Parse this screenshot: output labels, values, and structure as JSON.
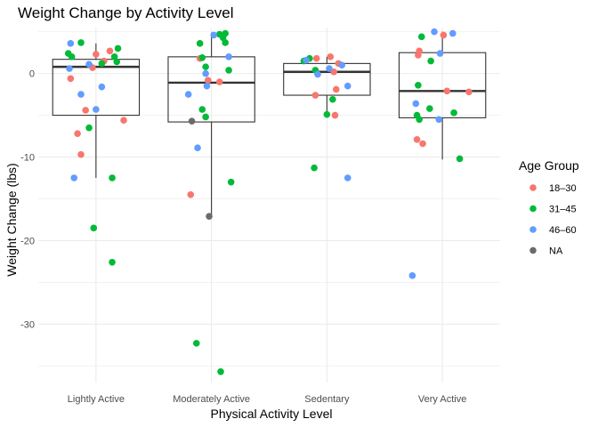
{
  "chart_data": {
    "type": "boxplot-jitter",
    "title": "Weight Change by Activity Level",
    "xlabel": "Physical Activity Level",
    "ylabel": "Weight Change (lbs)",
    "categories": [
      "Lightly Active",
      "Moderately Active",
      "Sedentary",
      "Very Active"
    ],
    "ylim": [
      -37,
      5.5
    ],
    "yticks": [
      0,
      -10,
      -20,
      -30
    ],
    "grid": true,
    "legend": {
      "title": "Age Group",
      "position": "right",
      "items": [
        {
          "label": "18–30",
          "color": "#F8766D"
        },
        {
          "label": "31–45",
          "color": "#00BA38"
        },
        {
          "label": "46–60",
          "color": "#619CFF"
        },
        {
          "label": "NA",
          "color": "#6b6b6b"
        }
      ]
    },
    "boxes": [
      {
        "category": "Lightly Active",
        "q1": -5.0,
        "median": 0.8,
        "q3": 1.7,
        "whisker_low": -12.5,
        "whisker_high": 3.6
      },
      {
        "category": "Moderately Active",
        "q1": -5.8,
        "median": -1.1,
        "q3": 2.0,
        "whisker_low": -17.0,
        "whisker_high": 4.9
      },
      {
        "category": "Sedentary",
        "q1": -2.6,
        "median": 0.2,
        "q3": 1.2,
        "whisker_low": -5.0,
        "whisker_high": 2.0
      },
      {
        "category": "Very Active",
        "q1": -5.3,
        "median": -2.1,
        "q3": 2.5,
        "whisker_low": -10.3,
        "whisker_high": 5.0
      }
    ],
    "points": [
      {
        "category": "Lightly Active",
        "group": "18–30",
        "jitter": -0.22,
        "y": -0.6
      },
      {
        "category": "Lightly Active",
        "group": "18–30",
        "jitter": -0.16,
        "y": -7.2
      },
      {
        "category": "Lightly Active",
        "group": "18–30",
        "jitter": -0.13,
        "y": -9.7
      },
      {
        "category": "Lightly Active",
        "group": "18–30",
        "jitter": -0.09,
        "y": -4.4
      },
      {
        "category": "Lightly Active",
        "group": "18–30",
        "jitter": -0.03,
        "y": 0.7
      },
      {
        "category": "Lightly Active",
        "group": "18–30",
        "jitter": 0.0,
        "y": 2.3
      },
      {
        "category": "Lightly Active",
        "group": "18–30",
        "jitter": 0.07,
        "y": 1.5
      },
      {
        "category": "Lightly Active",
        "group": "18–30",
        "jitter": 0.12,
        "y": 2.7
      },
      {
        "category": "Lightly Active",
        "group": "18–30",
        "jitter": 0.24,
        "y": -5.6
      },
      {
        "category": "Lightly Active",
        "group": "31–45",
        "jitter": -0.24,
        "y": 2.4
      },
      {
        "category": "Lightly Active",
        "group": "31–45",
        "jitter": -0.21,
        "y": 2.0
      },
      {
        "category": "Lightly Active",
        "group": "31–45",
        "jitter": -0.13,
        "y": 3.7
      },
      {
        "category": "Lightly Active",
        "group": "31–45",
        "jitter": -0.06,
        "y": -6.5
      },
      {
        "category": "Lightly Active",
        "group": "31–45",
        "jitter": -0.02,
        "y": -18.5
      },
      {
        "category": "Lightly Active",
        "group": "31–45",
        "jitter": 0.05,
        "y": 1.2
      },
      {
        "category": "Lightly Active",
        "group": "31–45",
        "jitter": 0.14,
        "y": -12.5
      },
      {
        "category": "Lightly Active",
        "group": "31–45",
        "jitter": 0.14,
        "y": -22.6
      },
      {
        "category": "Lightly Active",
        "group": "31–45",
        "jitter": 0.16,
        "y": 2.0
      },
      {
        "category": "Lightly Active",
        "group": "31–45",
        "jitter": 0.19,
        "y": 3.0
      },
      {
        "category": "Lightly Active",
        "group": "31–45",
        "jitter": 0.18,
        "y": 1.4
      },
      {
        "category": "Lightly Active",
        "group": "46–60",
        "jitter": -0.22,
        "y": 3.6
      },
      {
        "category": "Lightly Active",
        "group": "46–60",
        "jitter": -0.23,
        "y": 0.6
      },
      {
        "category": "Lightly Active",
        "group": "46–60",
        "jitter": -0.19,
        "y": -12.5
      },
      {
        "category": "Lightly Active",
        "group": "46–60",
        "jitter": -0.13,
        "y": -2.5
      },
      {
        "category": "Lightly Active",
        "group": "46–60",
        "jitter": -0.06,
        "y": 1.1
      },
      {
        "category": "Lightly Active",
        "group": "46–60",
        "jitter": 0.0,
        "y": -4.3
      },
      {
        "category": "Lightly Active",
        "group": "46–60",
        "jitter": 0.05,
        "y": -1.6
      },
      {
        "category": "Moderately Active",
        "group": "18–30",
        "jitter": -0.18,
        "y": -14.5
      },
      {
        "category": "Moderately Active",
        "group": "18–30",
        "jitter": -0.1,
        "y": 1.8
      },
      {
        "category": "Moderately Active",
        "group": "18–30",
        "jitter": -0.03,
        "y": -0.8
      },
      {
        "category": "Moderately Active",
        "group": "18–30",
        "jitter": 0.07,
        "y": -1.0
      },
      {
        "category": "Moderately Active",
        "group": "31–45",
        "jitter": -0.1,
        "y": 3.6
      },
      {
        "category": "Moderately Active",
        "group": "31–45",
        "jitter": -0.13,
        "y": -32.3
      },
      {
        "category": "Moderately Active",
        "group": "31–45",
        "jitter": -0.08,
        "y": 1.9
      },
      {
        "category": "Moderately Active",
        "group": "31–45",
        "jitter": -0.08,
        "y": -4.3
      },
      {
        "category": "Moderately Active",
        "group": "31–45",
        "jitter": -0.05,
        "y": 0.8
      },
      {
        "category": "Moderately Active",
        "group": "31–45",
        "jitter": -0.05,
        "y": -5.2
      },
      {
        "category": "Moderately Active",
        "group": "31–45",
        "jitter": 0.07,
        "y": 4.7
      },
      {
        "category": "Moderately Active",
        "group": "31–45",
        "jitter": 0.08,
        "y": -35.7
      },
      {
        "category": "Moderately Active",
        "group": "31–45",
        "jitter": 0.1,
        "y": 4.3
      },
      {
        "category": "Moderately Active",
        "group": "31–45",
        "jitter": 0.12,
        "y": 4.8
      },
      {
        "category": "Moderately Active",
        "group": "31–45",
        "jitter": 0.12,
        "y": 3.7
      },
      {
        "category": "Moderately Active",
        "group": "31–45",
        "jitter": 0.15,
        "y": 0.4
      },
      {
        "category": "Moderately Active",
        "group": "31–45",
        "jitter": 0.17,
        "y": -13.0
      },
      {
        "category": "Moderately Active",
        "group": "46–60",
        "jitter": -0.2,
        "y": -2.5
      },
      {
        "category": "Moderately Active",
        "group": "46–60",
        "jitter": -0.12,
        "y": -8.9
      },
      {
        "category": "Moderately Active",
        "group": "46–60",
        "jitter": -0.04,
        "y": -1.5
      },
      {
        "category": "Moderately Active",
        "group": "46–60",
        "jitter": -0.05,
        "y": 0.0
      },
      {
        "category": "Moderately Active",
        "group": "46–60",
        "jitter": 0.02,
        "y": 4.6
      },
      {
        "category": "Moderately Active",
        "group": "46–60",
        "jitter": 0.15,
        "y": 2.0
      },
      {
        "category": "Moderately Active",
        "group": "NA",
        "jitter": -0.17,
        "y": -5.7
      },
      {
        "category": "Moderately Active",
        "group": "NA",
        "jitter": -0.02,
        "y": -17.1
      },
      {
        "category": "Sedentary",
        "group": "18–30",
        "jitter": -0.09,
        "y": 1.8
      },
      {
        "category": "Sedentary",
        "group": "18–30",
        "jitter": -0.1,
        "y": -2.6
      },
      {
        "category": "Sedentary",
        "group": "18–30",
        "jitter": 0.03,
        "y": 2.0
      },
      {
        "category": "Sedentary",
        "group": "18–30",
        "jitter": 0.1,
        "y": 1.2
      },
      {
        "category": "Sedentary",
        "group": "18–30",
        "jitter": 0.06,
        "y": 0.2
      },
      {
        "category": "Sedentary",
        "group": "18–30",
        "jitter": 0.08,
        "y": -1.9
      },
      {
        "category": "Sedentary",
        "group": "18–30",
        "jitter": 0.07,
        "y": -5.0
      },
      {
        "category": "Sedentary",
        "group": "31–45",
        "jitter": -0.2,
        "y": 1.5
      },
      {
        "category": "Sedentary",
        "group": "31–45",
        "jitter": -0.1,
        "y": 0.4
      },
      {
        "category": "Sedentary",
        "group": "31–45",
        "jitter": -0.11,
        "y": -11.3
      },
      {
        "category": "Sedentary",
        "group": "31–45",
        "jitter": 0.0,
        "y": -4.9
      },
      {
        "category": "Sedentary",
        "group": "31–45",
        "jitter": 0.05,
        "y": -3.1
      },
      {
        "category": "Sedentary",
        "group": "31–45",
        "jitter": -0.15,
        "y": 1.8
      },
      {
        "category": "Sedentary",
        "group": "46–60",
        "jitter": -0.18,
        "y": 1.6
      },
      {
        "category": "Sedentary",
        "group": "46–60",
        "jitter": -0.08,
        "y": -0.1
      },
      {
        "category": "Sedentary",
        "group": "46–60",
        "jitter": 0.02,
        "y": 0.6
      },
      {
        "category": "Sedentary",
        "group": "46–60",
        "jitter": 0.13,
        "y": 1.0
      },
      {
        "category": "Sedentary",
        "group": "46–60",
        "jitter": 0.18,
        "y": -1.5
      },
      {
        "category": "Sedentary",
        "group": "46–60",
        "jitter": 0.18,
        "y": -12.5
      },
      {
        "category": "Very Active",
        "group": "18–30",
        "jitter": -0.21,
        "y": 2.2
      },
      {
        "category": "Very Active",
        "group": "18–30",
        "jitter": -0.22,
        "y": -7.9
      },
      {
        "category": "Very Active",
        "group": "18–30",
        "jitter": -0.17,
        "y": -8.4
      },
      {
        "category": "Very Active",
        "group": "18–30",
        "jitter": -0.2,
        "y": 2.7
      },
      {
        "category": "Very Active",
        "group": "18–30",
        "jitter": 0.01,
        "y": 4.6
      },
      {
        "category": "Very Active",
        "group": "18–30",
        "jitter": 0.04,
        "y": -2.1
      },
      {
        "category": "Very Active",
        "group": "18–30",
        "jitter": 0.23,
        "y": -2.2
      },
      {
        "category": "Very Active",
        "group": "31–45",
        "jitter": -0.18,
        "y": 4.4
      },
      {
        "category": "Very Active",
        "group": "31–45",
        "jitter": -0.22,
        "y": -5.0
      },
      {
        "category": "Very Active",
        "group": "31–45",
        "jitter": -0.2,
        "y": -5.5
      },
      {
        "category": "Very Active",
        "group": "31–45",
        "jitter": -0.21,
        "y": -1.4
      },
      {
        "category": "Very Active",
        "group": "31–45",
        "jitter": -0.1,
        "y": 1.5
      },
      {
        "category": "Very Active",
        "group": "31–45",
        "jitter": -0.11,
        "y": -4.2
      },
      {
        "category": "Very Active",
        "group": "31–45",
        "jitter": 0.1,
        "y": -4.7
      },
      {
        "category": "Very Active",
        "group": "31–45",
        "jitter": 0.15,
        "y": -10.2
      },
      {
        "category": "Very Active",
        "group": "46–60",
        "jitter": -0.23,
        "y": -3.6
      },
      {
        "category": "Very Active",
        "group": "46–60",
        "jitter": -0.07,
        "y": 5.0
      },
      {
        "category": "Very Active",
        "group": "46–60",
        "jitter": -0.02,
        "y": 2.4
      },
      {
        "category": "Very Active",
        "group": "46–60",
        "jitter": -0.03,
        "y": -5.5
      },
      {
        "category": "Very Active",
        "group": "46–60",
        "jitter": 0.09,
        "y": 4.8
      },
      {
        "category": "Very Active",
        "group": "46–60",
        "jitter": -0.26,
        "y": -24.2
      }
    ]
  }
}
